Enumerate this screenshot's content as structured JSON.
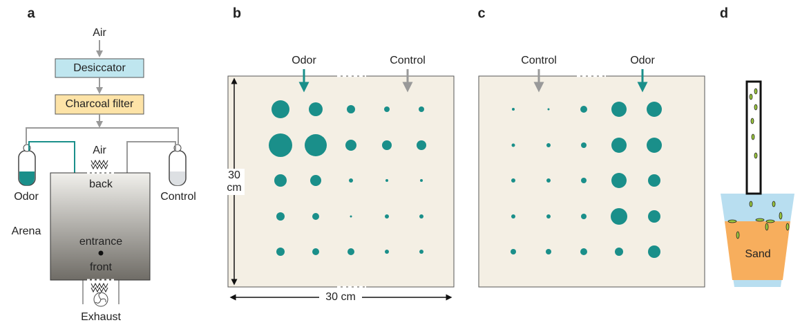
{
  "panels": {
    "a": {
      "label": "a",
      "air_in": "Air",
      "desiccator": "Desiccator",
      "charcoal_filter": "Charcoal filter",
      "odor": "Odor",
      "control": "Control",
      "air": "Air",
      "back": "back",
      "arena": "Arena",
      "entrance": "entrance",
      "front": "front",
      "exhaust": "Exhaust"
    },
    "b": {
      "label": "b",
      "odor": "Odor",
      "control": "Control",
      "height_value": "30",
      "height_unit": "cm",
      "width": "30 cm"
    },
    "c": {
      "label": "c",
      "control": "Control",
      "odor": "Odor"
    },
    "d": {
      "label": "d",
      "sand": "Sand"
    }
  }
}
